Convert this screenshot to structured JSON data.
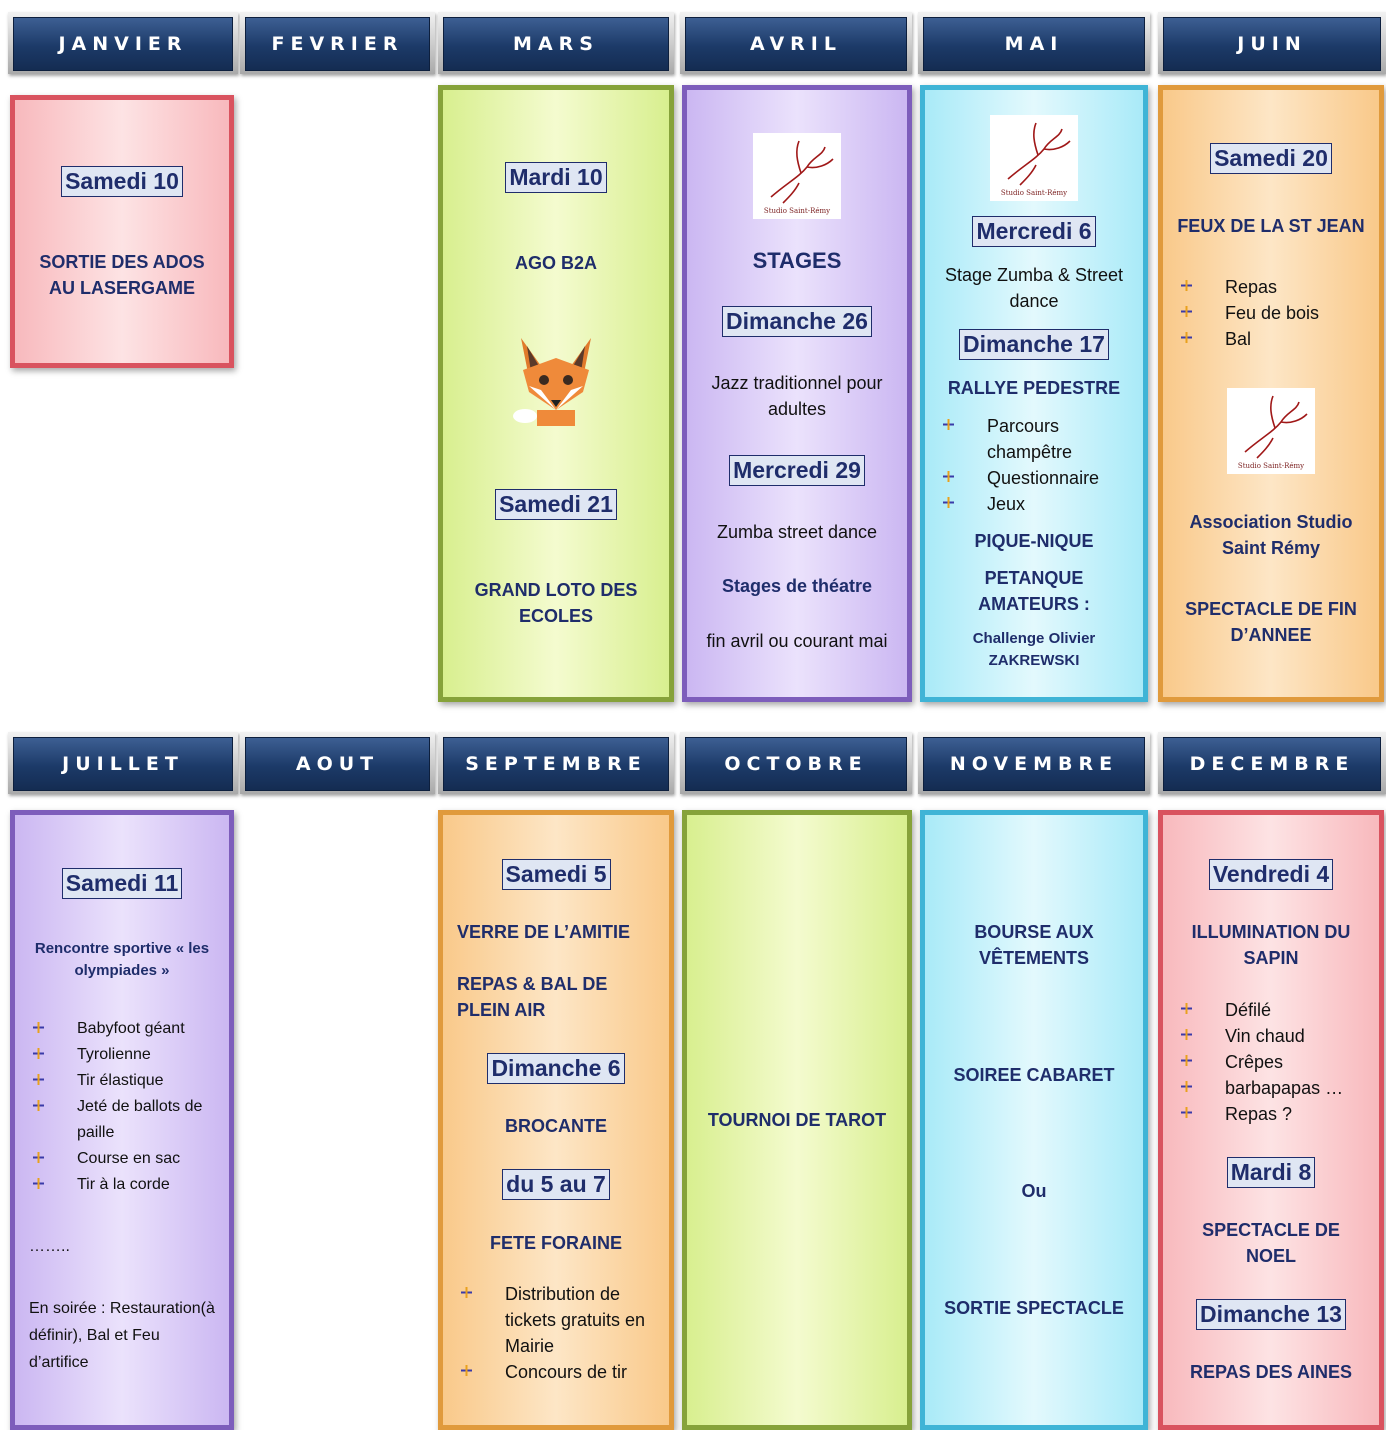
{
  "months": [
    {
      "name": "JANVIER",
      "card": [
        {
          "kind": "date",
          "text": "Samedi 10"
        },
        {
          "kind": "title",
          "text": "SORTIE DES ADOS AU LASERGAME"
        }
      ]
    },
    {
      "name": "FEVRIER"
    },
    {
      "name": "MARS",
      "card": [
        {
          "kind": "date",
          "text": "Mardi 10"
        },
        {
          "kind": "title",
          "text": "AGO B2A"
        },
        {
          "kind": "fox"
        },
        {
          "kind": "date",
          "text": "Samedi 21"
        },
        {
          "kind": "title",
          "text": "GRAND LOTO DES ECOLES"
        }
      ]
    },
    {
      "name": "AVRIL",
      "card": [
        {
          "kind": "logo",
          "text": "Studio Saint-Rémy"
        },
        {
          "kind": "heading",
          "text": "STAGES"
        },
        {
          "kind": "date",
          "text": "Dimanche 26"
        },
        {
          "kind": "text",
          "text": "Jazz traditionnel pour adultes"
        },
        {
          "kind": "date",
          "text": "Mercredi 29"
        },
        {
          "kind": "text",
          "text": "Zumba street dance"
        },
        {
          "kind": "title",
          "text": "Stages de théatre"
        },
        {
          "kind": "text",
          "text": "fin avril ou courant mai"
        }
      ]
    },
    {
      "name": "MAI",
      "card": [
        {
          "kind": "logo",
          "text": "Studio Saint-Rémy"
        },
        {
          "kind": "date",
          "text": "Mercredi 6"
        },
        {
          "kind": "text",
          "text": "Stage Zumba & Street dance"
        },
        {
          "kind": "date",
          "text": "Dimanche 17"
        },
        {
          "kind": "title",
          "text": "RALLYE PEDESTRE"
        },
        {
          "kind": "bullets",
          "items": [
            "Parcours champêtre",
            "Questionnaire",
            "Jeux"
          ]
        },
        {
          "kind": "title",
          "text": "PIQUE-NIQUE"
        },
        {
          "kind": "title",
          "text": "PETANQUE AMATEURS :"
        },
        {
          "kind": "small",
          "text": "Challenge Olivier ZAKREWSKI"
        }
      ]
    },
    {
      "name": "JUIN",
      "card": [
        {
          "kind": "date",
          "text": "Samedi 20"
        },
        {
          "kind": "title",
          "text": "FEUX DE LA ST JEAN"
        },
        {
          "kind": "bullets",
          "items": [
            "Repas",
            "Feu de bois",
            "Bal"
          ]
        },
        {
          "kind": "logo",
          "text": "Studio Saint-Rémy"
        },
        {
          "kind": "title",
          "text": "Association Studio Saint Rémy"
        },
        {
          "kind": "title",
          "text": "SPECTACLE DE FIN D’ANNEE"
        }
      ]
    },
    {
      "name": "JUILLET",
      "card": [
        {
          "kind": "date",
          "text": "Samedi 11"
        },
        {
          "kind": "small",
          "text": "Rencontre sportive « les olympiades »"
        },
        {
          "kind": "bullets",
          "items": [
            "Babyfoot géant",
            "Tyrolienne",
            "Tir élastique",
            "Jeté de ballots de paille",
            "Course en sac",
            "Tir à la corde"
          ]
        },
        {
          "kind": "text-left",
          "text": "…….."
        },
        {
          "kind": "text-left",
          "text": "En soirée : Restauration(à définir), Bal et Feu d’artifice"
        }
      ]
    },
    {
      "name": "AOUT"
    },
    {
      "name": "SEPTEMBRE",
      "card": [
        {
          "kind": "date",
          "text": "Samedi 5"
        },
        {
          "kind": "title-left",
          "text": "VERRE DE L’AMITIE"
        },
        {
          "kind": "title-left",
          "text": "REPAS & BAL DE PLEIN AIR"
        },
        {
          "kind": "date",
          "text": "Dimanche 6"
        },
        {
          "kind": "title",
          "text": "BROCANTE"
        },
        {
          "kind": "date",
          "text": "du 5 au 7"
        },
        {
          "kind": "title",
          "text": "FETE FORAINE"
        },
        {
          "kind": "bullets",
          "items": [
            "Distribution de tickets gratuits en Mairie",
            "Concours de tir"
          ]
        }
      ]
    },
    {
      "name": "OCTOBRE",
      "card": [
        {
          "kind": "title",
          "text": "TOURNOI DE TAROT"
        }
      ]
    },
    {
      "name": "NOVEMBRE",
      "card": [
        {
          "kind": "title",
          "text": "BOURSE AUX VÊTEMENTS"
        },
        {
          "kind": "title",
          "text": "SOIREE CABARET"
        },
        {
          "kind": "title",
          "text": "Ou"
        },
        {
          "kind": "title",
          "text": "SORTIE SPECTACLE"
        }
      ]
    },
    {
      "name": "DECEMBRE",
      "card": [
        {
          "kind": "date",
          "text": "Vendredi 4"
        },
        {
          "kind": "title",
          "text": "ILLUMINATION DU SAPIN"
        },
        {
          "kind": "bullets",
          "items": [
            "Défilé",
            "Vin chaud",
            "Crêpes",
            "barbapapas …",
            "Repas ?"
          ]
        },
        {
          "kind": "date",
          "text": "Mardi 8"
        },
        {
          "kind": "title",
          "text": "SPECTACLE DE NOEL"
        },
        {
          "kind": "date",
          "text": "Dimanche 13"
        },
        {
          "kind": "title",
          "text": "REPAS DES AINES"
        }
      ]
    }
  ]
}
